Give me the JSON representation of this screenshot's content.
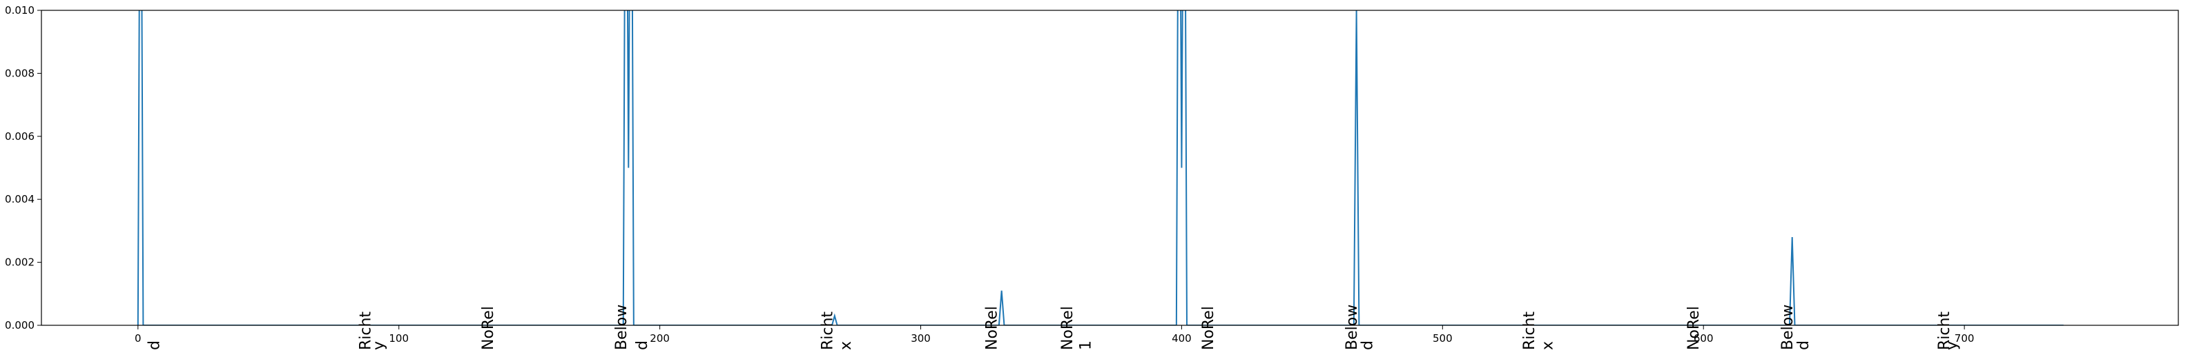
{
  "chart_data": {
    "type": "line",
    "x": [
      0,
      1,
      2,
      186,
      187,
      188,
      189,
      190,
      266,
      267,
      268,
      330,
      331,
      332,
      398,
      399,
      400,
      401,
      402,
      466,
      467,
      468,
      633,
      634,
      635,
      738
    ],
    "values": [
      0,
      0.02,
      0,
      0,
      0.02,
      0.005,
      0.02,
      0,
      0,
      0.0003,
      0,
      0,
      0.0011,
      0,
      0,
      0.02,
      0.005,
      0.02,
      0,
      0,
      0.01,
      0,
      0,
      0.0028,
      0,
      0
    ],
    "color": "#1f77b4",
    "xlim": [
      -37,
      782
    ],
    "ylim": [
      0,
      0.01
    ],
    "xticks": [
      0,
      100,
      200,
      300,
      400,
      500,
      600,
      700
    ],
    "yticks": [
      {
        "value": 0,
        "label": "0.000"
      },
      {
        "value": 0.002,
        "label": "0.002"
      },
      {
        "value": 0.004,
        "label": "0.004"
      },
      {
        "value": 0.006,
        "label": "0.006"
      },
      {
        "value": 0.008,
        "label": "0.008"
      },
      {
        "value": 0.01,
        "label": "0.010"
      }
    ],
    "annotation_color": "#ff0000",
    "annotations": [
      {
        "x": 6,
        "text": "d"
      },
      {
        "x": 87,
        "text": "Richt"
      },
      {
        "x": 92,
        "text": "y"
      },
      {
        "x": 134,
        "text": "NoRel"
      },
      {
        "x": 185,
        "text": "Below"
      },
      {
        "x": 193,
        "text": "d"
      },
      {
        "x": 264,
        "text": "Richt"
      },
      {
        "x": 271,
        "text": "x"
      },
      {
        "x": 327,
        "text": "NoRel"
      },
      {
        "x": 356,
        "text": "NoRel"
      },
      {
        "x": 363,
        "text": "1"
      },
      {
        "x": 410,
        "text": "NoRel"
      },
      {
        "x": 465,
        "text": "Below"
      },
      {
        "x": 471,
        "text": "d"
      },
      {
        "x": 533,
        "text": "Richt"
      },
      {
        "x": 540,
        "text": "x"
      },
      {
        "x": 596,
        "text": "NoRel"
      },
      {
        "x": 632,
        "text": "Below"
      },
      {
        "x": 638,
        "text": "d"
      },
      {
        "x": 692,
        "text": "Richt"
      },
      {
        "x": 695,
        "text": "y"
      }
    ]
  }
}
